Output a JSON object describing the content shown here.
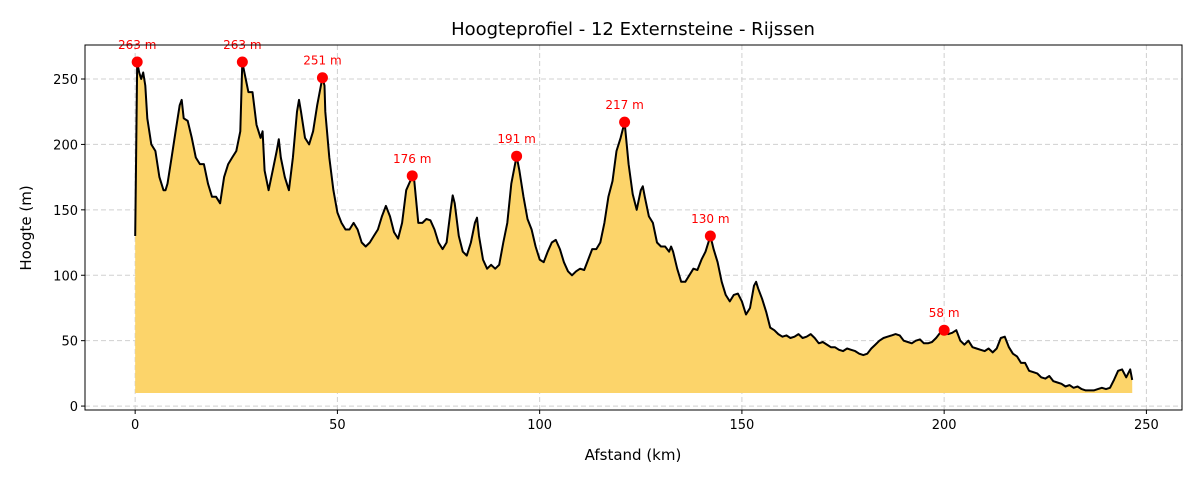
{
  "chart_data": {
    "type": "area",
    "title": "Hoogteprofiel - 12 Externsteine - Rijssen",
    "xlabel": "Afstand (km)",
    "ylabel": "Hoogte (m)",
    "xlim": [
      -12.4,
      258.8
    ],
    "ylim": [
      -3,
      276
    ],
    "xticks": [
      0,
      50,
      100,
      150,
      200,
      250
    ],
    "yticks": [
      0,
      50,
      100,
      150,
      200,
      250
    ],
    "grid": true,
    "fill_base": 10,
    "colors": {
      "fill": "#fcd46a",
      "line": "#000000",
      "marker": "#ff0000",
      "grid": "#d0d0d0"
    },
    "profile": [
      [
        0,
        130
      ],
      [
        0.5,
        263
      ],
      [
        1,
        255
      ],
      [
        1.5,
        250
      ],
      [
        2,
        255
      ],
      [
        2.5,
        245
      ],
      [
        3,
        220
      ],
      [
        4,
        200
      ],
      [
        5,
        195
      ],
      [
        6,
        175
      ],
      [
        7,
        165
      ],
      [
        7.5,
        165
      ],
      [
        8,
        170
      ],
      [
        9,
        190
      ],
      [
        10,
        210
      ],
      [
        11,
        230
      ],
      [
        11.5,
        234
      ],
      [
        12,
        220
      ],
      [
        13,
        218
      ],
      [
        14,
        205
      ],
      [
        15,
        190
      ],
      [
        16,
        185
      ],
      [
        17,
        185
      ],
      [
        18,
        170
      ],
      [
        19,
        160
      ],
      [
        20,
        160
      ],
      [
        21,
        155
      ],
      [
        22,
        175
      ],
      [
        23,
        185
      ],
      [
        24,
        190
      ],
      [
        25,
        195
      ],
      [
        26,
        210
      ],
      [
        26.5,
        263
      ],
      [
        27,
        255
      ],
      [
        28,
        240
      ],
      [
        29,
        240
      ],
      [
        30,
        215
      ],
      [
        31,
        205
      ],
      [
        31.5,
        210
      ],
      [
        32,
        180
      ],
      [
        33,
        165
      ],
      [
        34,
        180
      ],
      [
        35,
        195
      ],
      [
        35.5,
        204
      ],
      [
        36,
        190
      ],
      [
        37,
        175
      ],
      [
        38,
        165
      ],
      [
        39,
        190
      ],
      [
        40,
        225
      ],
      [
        40.5,
        234
      ],
      [
        41,
        225
      ],
      [
        42,
        205
      ],
      [
        43,
        200
      ],
      [
        44,
        210
      ],
      [
        45,
        230
      ],
      [
        46.3,
        251
      ],
      [
        46.8,
        245
      ],
      [
        47,
        225
      ],
      [
        48,
        190
      ],
      [
        49,
        165
      ],
      [
        50,
        148
      ],
      [
        51,
        140
      ],
      [
        52,
        135
      ],
      [
        53,
        135
      ],
      [
        54,
        140
      ],
      [
        55,
        135
      ],
      [
        56,
        125
      ],
      [
        57,
        122
      ],
      [
        58,
        125
      ],
      [
        59,
        130
      ],
      [
        60,
        135
      ],
      [
        61,
        145
      ],
      [
        62,
        153
      ],
      [
        63,
        145
      ],
      [
        64,
        133
      ],
      [
        65,
        128
      ],
      [
        66,
        140
      ],
      [
        67,
        165
      ],
      [
        68,
        172
      ],
      [
        68.5,
        176
      ],
      [
        69,
        172
      ],
      [
        70,
        140
      ],
      [
        71,
        140
      ],
      [
        72,
        143
      ],
      [
        73,
        142
      ],
      [
        74,
        135
      ],
      [
        75,
        125
      ],
      [
        76,
        120
      ],
      [
        77,
        125
      ],
      [
        78,
        150
      ],
      [
        78.5,
        161
      ],
      [
        79,
        155
      ],
      [
        80,
        130
      ],
      [
        81,
        118
      ],
      [
        82,
        115
      ],
      [
        83,
        125
      ],
      [
        84,
        140
      ],
      [
        84.5,
        144
      ],
      [
        85,
        130
      ],
      [
        86,
        112
      ],
      [
        87,
        105
      ],
      [
        88,
        108
      ],
      [
        89,
        105
      ],
      [
        90,
        108
      ],
      [
        91,
        125
      ],
      [
        92,
        140
      ],
      [
        93,
        170
      ],
      [
        94.3,
        191
      ],
      [
        95,
        180
      ],
      [
        96,
        160
      ],
      [
        97,
        143
      ],
      [
        98,
        135
      ],
      [
        99,
        122
      ],
      [
        100,
        112
      ],
      [
        101,
        110
      ],
      [
        102,
        118
      ],
      [
        103,
        125
      ],
      [
        104,
        127
      ],
      [
        105,
        120
      ],
      [
        106,
        110
      ],
      [
        107,
        103
      ],
      [
        108,
        100
      ],
      [
        109,
        103
      ],
      [
        110,
        105
      ],
      [
        111,
        104
      ],
      [
        112,
        112
      ],
      [
        113,
        120
      ],
      [
        114,
        120
      ],
      [
        115,
        125
      ],
      [
        116,
        140
      ],
      [
        117,
        160
      ],
      [
        118,
        172
      ],
      [
        119,
        195
      ],
      [
        120,
        205
      ],
      [
        121,
        217
      ],
      [
        122,
        185
      ],
      [
        123,
        162
      ],
      [
        124,
        150
      ],
      [
        125,
        165
      ],
      [
        125.5,
        168
      ],
      [
        126,
        160
      ],
      [
        127,
        145
      ],
      [
        128,
        140
      ],
      [
        129,
        125
      ],
      [
        130,
        122
      ],
      [
        131,
        122
      ],
      [
        132,
        118
      ],
      [
        132.5,
        122
      ],
      [
        133,
        118
      ],
      [
        134,
        105
      ],
      [
        135,
        95
      ],
      [
        136,
        95
      ],
      [
        137,
        100
      ],
      [
        138,
        105
      ],
      [
        139,
        104
      ],
      [
        140,
        112
      ],
      [
        141,
        118
      ],
      [
        142.2,
        130
      ],
      [
        143,
        120
      ],
      [
        144,
        110
      ],
      [
        145,
        95
      ],
      [
        146,
        85
      ],
      [
        147,
        80
      ],
      [
        148,
        85
      ],
      [
        149,
        86
      ],
      [
        150,
        80
      ],
      [
        151,
        70
      ],
      [
        152,
        75
      ],
      [
        153,
        92
      ],
      [
        153.5,
        95
      ],
      [
        154,
        90
      ],
      [
        155,
        82
      ],
      [
        156,
        72
      ],
      [
        157,
        60
      ],
      [
        158,
        58
      ],
      [
        159,
        55
      ],
      [
        160,
        53
      ],
      [
        161,
        54
      ],
      [
        162,
        52
      ],
      [
        163,
        53
      ],
      [
        164,
        55
      ],
      [
        165,
        52
      ],
      [
        166,
        53
      ],
      [
        167,
        55
      ],
      [
        168,
        52
      ],
      [
        169,
        48
      ],
      [
        170,
        49
      ],
      [
        171,
        47
      ],
      [
        172,
        45
      ],
      [
        173,
        45
      ],
      [
        174,
        43
      ],
      [
        175,
        42
      ],
      [
        176,
        44
      ],
      [
        177,
        43
      ],
      [
        178,
        42
      ],
      [
        179,
        40
      ],
      [
        180,
        39
      ],
      [
        181,
        40
      ],
      [
        182,
        44
      ],
      [
        183,
        47
      ],
      [
        184,
        50
      ],
      [
        185,
        52
      ],
      [
        186,
        53
      ],
      [
        187,
        54
      ],
      [
        188,
        55
      ],
      [
        189,
        54
      ],
      [
        190,
        50
      ],
      [
        191,
        49
      ],
      [
        192,
        48
      ],
      [
        193,
        50
      ],
      [
        194,
        51
      ],
      [
        195,
        48
      ],
      [
        196,
        48
      ],
      [
        197,
        49
      ],
      [
        198,
        52
      ],
      [
        199,
        56
      ],
      [
        200,
        58
      ],
      [
        201,
        55
      ],
      [
        202,
        56
      ],
      [
        203,
        58
      ],
      [
        204,
        50
      ],
      [
        205,
        47
      ],
      [
        206,
        50
      ],
      [
        207,
        45
      ],
      [
        208,
        44
      ],
      [
        209,
        43
      ],
      [
        210,
        42
      ],
      [
        211,
        44
      ],
      [
        212,
        41
      ],
      [
        213,
        44
      ],
      [
        214,
        52
      ],
      [
        215,
        53
      ],
      [
        216,
        45
      ],
      [
        217,
        40
      ],
      [
        218,
        38
      ],
      [
        219,
        33
      ],
      [
        220,
        33
      ],
      [
        221,
        27
      ],
      [
        222,
        26
      ],
      [
        223,
        25
      ],
      [
        224,
        22
      ],
      [
        225,
        21
      ],
      [
        226,
        23
      ],
      [
        227,
        19
      ],
      [
        228,
        18
      ],
      [
        229,
        17
      ],
      [
        230,
        15
      ],
      [
        231,
        16
      ],
      [
        232,
        14
      ],
      [
        233,
        15
      ],
      [
        234,
        13
      ],
      [
        235,
        12
      ],
      [
        236,
        12
      ],
      [
        237,
        12
      ],
      [
        238,
        13
      ],
      [
        239,
        14
      ],
      [
        240,
        13
      ],
      [
        241,
        14
      ],
      [
        242,
        20
      ],
      [
        243,
        27
      ],
      [
        244,
        28
      ],
      [
        245,
        22
      ],
      [
        246,
        28
      ],
      [
        246.5,
        20
      ]
    ],
    "peaks": [
      {
        "x": 0.5,
        "y": 263,
        "label": "263 m"
      },
      {
        "x": 26.5,
        "y": 263,
        "label": "263 m"
      },
      {
        "x": 46.3,
        "y": 251,
        "label": "251 m"
      },
      {
        "x": 68.5,
        "y": 176,
        "label": "176 m"
      },
      {
        "x": 94.3,
        "y": 191,
        "label": "191 m"
      },
      {
        "x": 121,
        "y": 217,
        "label": "217 m"
      },
      {
        "x": 142.2,
        "y": 130,
        "label": "130 m"
      },
      {
        "x": 200,
        "y": 58,
        "label": "58 m"
      }
    ]
  }
}
